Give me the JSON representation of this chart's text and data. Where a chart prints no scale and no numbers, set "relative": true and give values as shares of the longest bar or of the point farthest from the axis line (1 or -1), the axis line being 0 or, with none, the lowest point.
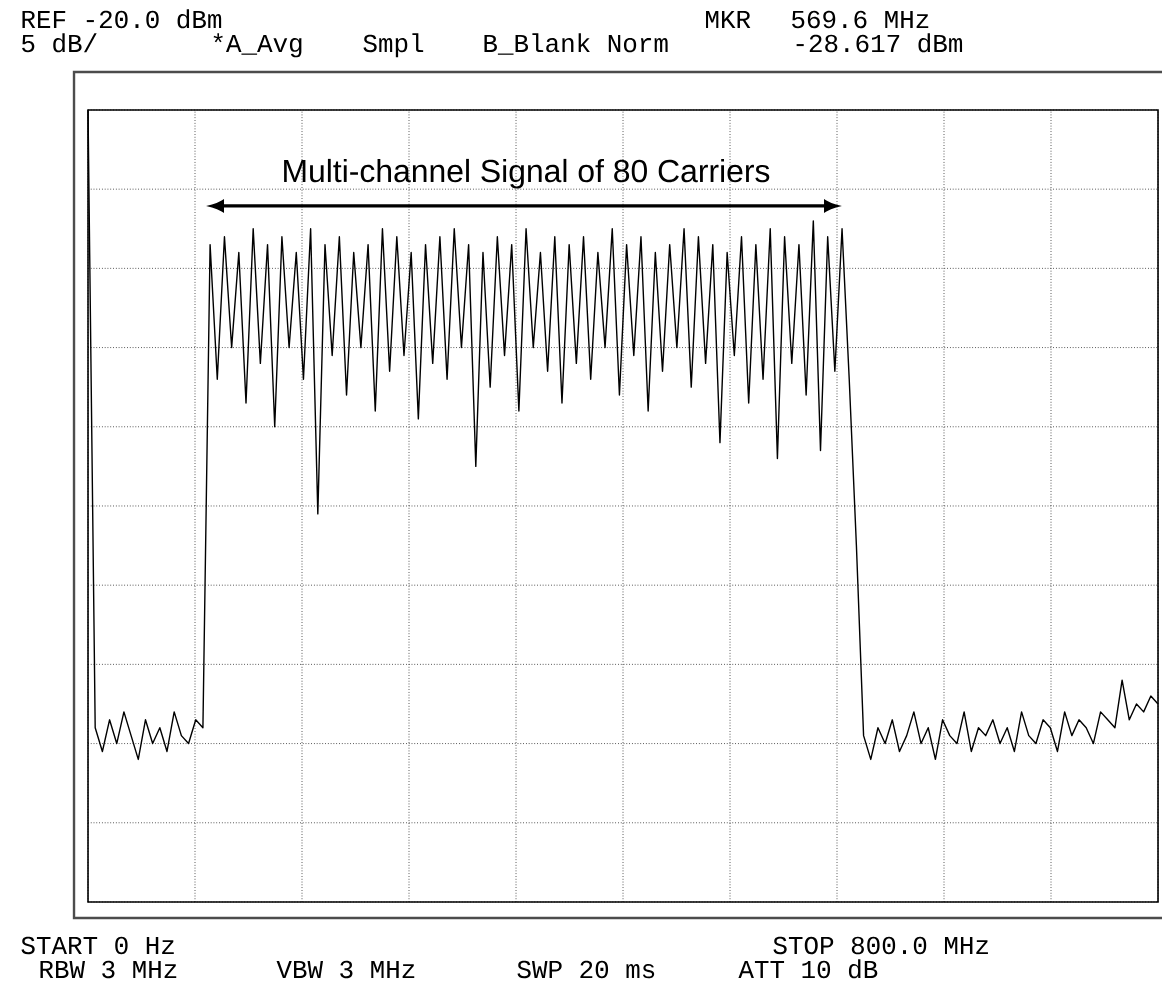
{
  "chart_data": {
    "type": "line",
    "relative": true,
    "grid": true,
    "title": "Multi-channel Signal of 80 Carriers",
    "annotations": [
      "REF -20.0 dBm",
      "5 dB/",
      "*A_Avg",
      "Smpl",
      "B_Blank Norm",
      "MKR",
      "569.6 MHz",
      "-28.617 dBm",
      "START 0 Hz",
      "STOP 800.0 MHz",
      "RBW 3 MHz",
      "VBW 3 MHz",
      "SWP 20 ms",
      "ATT 10 dB"
    ],
    "categories": [
      null,
      null,
      null,
      null,
      null,
      null,
      null,
      null,
      null,
      null,
      null,
      null,
      null,
      null,
      null,
      null,
      null,
      null,
      null,
      null,
      null,
      null,
      null,
      null,
      null,
      null,
      null,
      null,
      null,
      null,
      null,
      null,
      null,
      null,
      null,
      null,
      null,
      null,
      null,
      null,
      null,
      null,
      null,
      null,
      null,
      null,
      null,
      null,
      null,
      null,
      null,
      null,
      null,
      null,
      null,
      null,
      null,
      null,
      null,
      null,
      null,
      null,
      null,
      null,
      null,
      null,
      null,
      null,
      null,
      null,
      null,
      null,
      null,
      null,
      null,
      null,
      null,
      null,
      null,
      null,
      null,
      null,
      null,
      null,
      null,
      null,
      null,
      null,
      null,
      null,
      null,
      null,
      null,
      null,
      null,
      null,
      null,
      null,
      null,
      null,
      null,
      null,
      null,
      null,
      null,
      null,
      null,
      null,
      null,
      null,
      null,
      null,
      null,
      null,
      null,
      null,
      null,
      null,
      null,
      null,
      null,
      null,
      null,
      null,
      null,
      null,
      null,
      null,
      null,
      null,
      null,
      null,
      null,
      null,
      null,
      null,
      null,
      null,
      null,
      null,
      null,
      null,
      null,
      null,
      null,
      null,
      null,
      null,
      null,
      null
    ],
    "series": [
      {
        "color": "#000000",
        "values": [
          1.0,
          0.22,
          0.19,
          0.23,
          0.2,
          0.24,
          0.21,
          0.18,
          0.23,
          0.2,
          0.22,
          0.19,
          0.24,
          0.21,
          0.2,
          0.23,
          0.22,
          0.83,
          0.66,
          0.84,
          0.7,
          0.82,
          0.63,
          0.85,
          0.68,
          0.83,
          0.6,
          0.84,
          0.7,
          0.82,
          0.66,
          0.85,
          0.49,
          0.83,
          0.69,
          0.84,
          0.64,
          0.82,
          0.7,
          0.83,
          0.62,
          0.85,
          0.67,
          0.84,
          0.69,
          0.82,
          0.61,
          0.83,
          0.68,
          0.84,
          0.66,
          0.85,
          0.7,
          0.83,
          0.55,
          0.82,
          0.65,
          0.84,
          0.69,
          0.83,
          0.62,
          0.85,
          0.7,
          0.82,
          0.67,
          0.84,
          0.63,
          0.83,
          0.68,
          0.84,
          0.66,
          0.82,
          0.7,
          0.85,
          0.64,
          0.83,
          0.69,
          0.84,
          0.62,
          0.82,
          0.67,
          0.83,
          0.7,
          0.85,
          0.65,
          0.84,
          0.68,
          0.83,
          0.58,
          0.82,
          0.69,
          0.84,
          0.63,
          0.83,
          0.66,
          0.85,
          0.56,
          0.84,
          0.68,
          0.83,
          0.64,
          0.86,
          0.57,
          0.84,
          0.67,
          0.85,
          0.66,
          0.45,
          0.21,
          0.18,
          0.22,
          0.2,
          0.23,
          0.19,
          0.21,
          0.24,
          0.2,
          0.22,
          0.18,
          0.23,
          0.21,
          0.2,
          0.24,
          0.19,
          0.22,
          0.21,
          0.23,
          0.2,
          0.22,
          0.19,
          0.24,
          0.21,
          0.2,
          0.23,
          0.22,
          0.19,
          0.24,
          0.21,
          0.23,
          0.22,
          0.2,
          0.24,
          0.23,
          0.22,
          0.28,
          0.23,
          0.25,
          0.24,
          0.26,
          0.25
        ]
      }
    ]
  }
}
